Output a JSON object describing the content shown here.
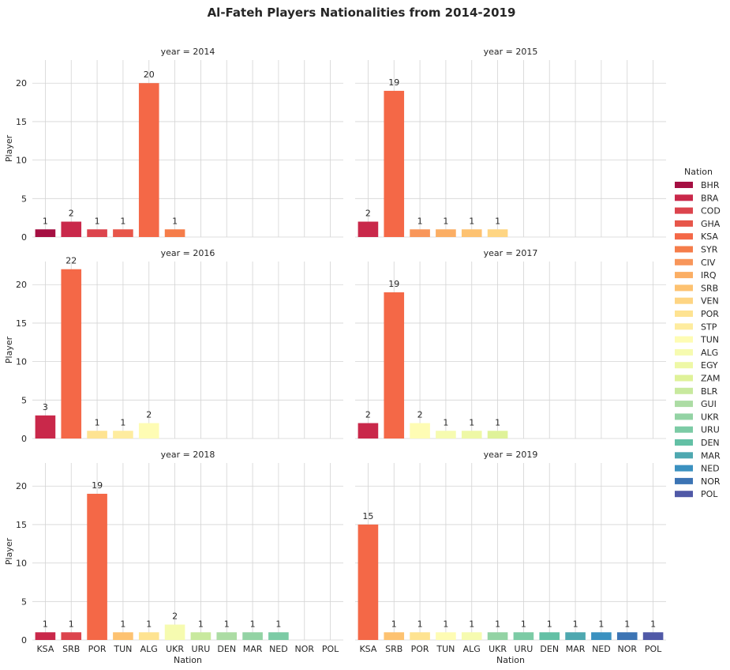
{
  "chart_data": {
    "type": "bar",
    "title": "Al-Fateh Players Nationalities from 2014-2019",
    "xlabel": "Nation",
    "ylabel": "Player",
    "ylim": [
      0,
      23
    ],
    "yticks": [
      0,
      5,
      10,
      15,
      20
    ],
    "grid": true,
    "legend": {
      "title": "Nation",
      "placement": "right",
      "entries": [
        {
          "name": "BHR",
          "color": "#a50f42"
        },
        {
          "name": "BRA",
          "color": "#c9284a"
        },
        {
          "name": "COD",
          "color": "#dc444d"
        },
        {
          "name": "GHA",
          "color": "#e7564a"
        },
        {
          "name": "KSA",
          "color": "#f46847"
        },
        {
          "name": "SYR",
          "color": "#f57d4a"
        },
        {
          "name": "CIV",
          "color": "#f8965a"
        },
        {
          "name": "IRQ",
          "color": "#fbae64"
        },
        {
          "name": "SRB",
          "color": "#fdc271"
        },
        {
          "name": "VEN",
          "color": "#fed583"
        },
        {
          "name": "POR",
          "color": "#fee391"
        },
        {
          "name": "STP",
          "color": "#feec9f"
        },
        {
          "name": "TUN",
          "color": "#fefcb4"
        },
        {
          "name": "ALG",
          "color": "#f6fbb0"
        },
        {
          "name": "EGY",
          "color": "#eef8a6"
        },
        {
          "name": "ZAM",
          "color": "#dff299"
        },
        {
          "name": "BLR",
          "color": "#c8e99e"
        },
        {
          "name": "GUI",
          "color": "#acdca4"
        },
        {
          "name": "UKR",
          "color": "#93d3a4"
        },
        {
          "name": "URU",
          "color": "#7ccba5"
        },
        {
          "name": "DEN",
          "color": "#63c0a5"
        },
        {
          "name": "MAR",
          "color": "#4ea8b0"
        },
        {
          "name": "NED",
          "color": "#3b91c0"
        },
        {
          "name": "NOR",
          "color": "#3c74b4"
        },
        {
          "name": "POL",
          "color": "#5059a7"
        }
      ]
    },
    "x_tick_labels": [
      "KSA",
      "SRB",
      "POR",
      "TUN",
      "ALG",
      "UKR",
      "URU",
      "DEN",
      "MAR",
      "NED",
      "NOR",
      "POL"
    ],
    "facets": [
      {
        "title": "year = 2014",
        "bars": [
          {
            "color": "#a50f42",
            "value": 1
          },
          {
            "color": "#c9284a",
            "value": 2
          },
          {
            "color": "#dc444d",
            "value": 1
          },
          {
            "color": "#e7564a",
            "value": 1
          },
          {
            "color": "#f46847",
            "value": 20
          },
          {
            "color": "#f57d4a",
            "value": 1
          }
        ]
      },
      {
        "title": "year = 2015",
        "bars": [
          {
            "color": "#c9284a",
            "value": 2
          },
          {
            "color": "#f46847",
            "value": 19
          },
          {
            "color": "#f8965a",
            "value": 1
          },
          {
            "color": "#fbae64",
            "value": 1
          },
          {
            "color": "#fdc271",
            "value": 1
          },
          {
            "color": "#fed583",
            "value": 1
          }
        ]
      },
      {
        "title": "year = 2016",
        "bars": [
          {
            "color": "#c9284a",
            "value": 3
          },
          {
            "color": "#f46847",
            "value": 22
          },
          {
            "color": "#fee391",
            "value": 1
          },
          {
            "color": "#feec9f",
            "value": 1
          },
          {
            "color": "#fefcb4",
            "value": 2
          }
        ]
      },
      {
        "title": "year = 2017",
        "bars": [
          {
            "color": "#c9284a",
            "value": 2
          },
          {
            "color": "#f46847",
            "value": 19
          },
          {
            "color": "#fefcb4",
            "value": 2
          },
          {
            "color": "#f6fbb0",
            "value": 1
          },
          {
            "color": "#eef8a6",
            "value": 1
          },
          {
            "color": "#dff299",
            "value": 1
          }
        ]
      },
      {
        "title": "year = 2018",
        "bars": [
          {
            "color": "#c9284a",
            "value": 1
          },
          {
            "color": "#dc444d",
            "value": 1
          },
          {
            "color": "#f46847",
            "value": 19
          },
          {
            "color": "#fdc271",
            "value": 1
          },
          {
            "color": "#fee391",
            "value": 1
          },
          {
            "color": "#f6fbb0",
            "value": 2
          },
          {
            "color": "#c8e99e",
            "value": 1
          },
          {
            "color": "#acdca4",
            "value": 1
          },
          {
            "color": "#93d3a4",
            "value": 1
          },
          {
            "color": "#7ccba5",
            "value": 1
          }
        ]
      },
      {
        "title": "year = 2019",
        "bars": [
          {
            "color": "#f46847",
            "value": 15
          },
          {
            "color": "#fdc271",
            "value": 1
          },
          {
            "color": "#fee391",
            "value": 1
          },
          {
            "color": "#fefcb4",
            "value": 1
          },
          {
            "color": "#f6fbb0",
            "value": 1
          },
          {
            "color": "#93d3a4",
            "value": 1
          },
          {
            "color": "#7ccba5",
            "value": 1
          },
          {
            "color": "#63c0a5",
            "value": 1
          },
          {
            "color": "#4ea8b0",
            "value": 1
          },
          {
            "color": "#3b91c0",
            "value": 1
          },
          {
            "color": "#3c74b4",
            "value": 1
          },
          {
            "color": "#5059a7",
            "value": 1
          }
        ]
      }
    ]
  }
}
